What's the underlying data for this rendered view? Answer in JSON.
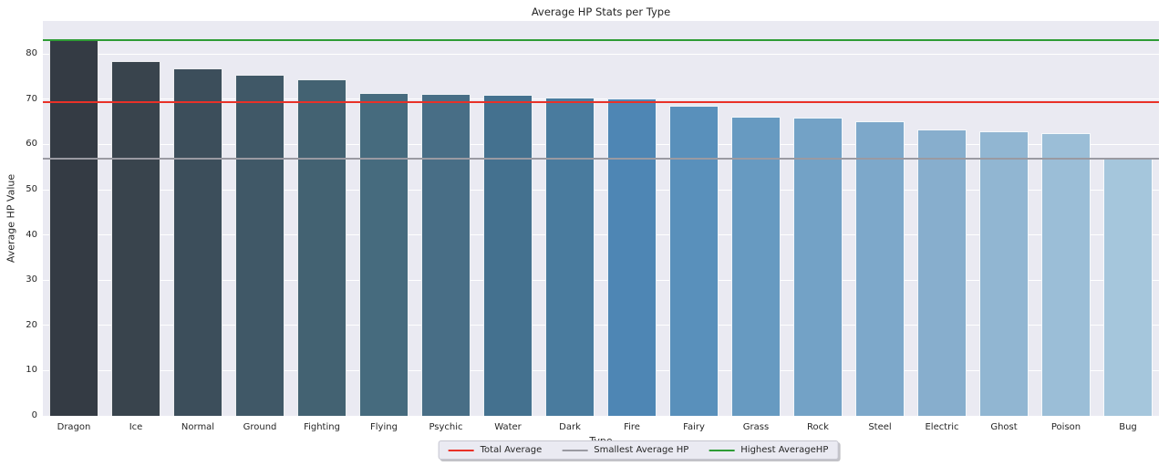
{
  "title": "Average HP Stats per Type",
  "colors": {
    "page_bg": "#ffffff",
    "plot_bg": "#eaeaf2",
    "grid": "#ffffff",
    "text": "#262626",
    "legend_bg": "#eaeaf2",
    "legend_border": "#c6c6d0",
    "total_average_line": "#e93128",
    "smallest_average_line": "#9a9aa2",
    "highest_average_line": "#2e9c35"
  },
  "chart_data": {
    "type": "bar",
    "title": "Average HP Stats per Type",
    "xlabel": "Type",
    "ylabel": "Average HP Value",
    "categories": [
      "Dragon",
      "Ice",
      "Normal",
      "Ground",
      "Fighting",
      "Flying",
      "Psychic",
      "Water",
      "Dark",
      "Fire",
      "Fairy",
      "Grass",
      "Rock",
      "Steel",
      "Electric",
      "Ghost",
      "Poison",
      "Bug"
    ],
    "values": [
      83.1,
      78.5,
      76.8,
      75.5,
      74.5,
      71.4,
      71.2,
      71.0,
      70.3,
      70.1,
      68.5,
      66.1,
      66.0,
      65.2,
      63.3,
      62.9,
      62.6,
      56.9
    ],
    "bar_colors": [
      "#343b44",
      "#39444d",
      "#3c4e5b",
      "#405867",
      "#436272",
      "#466b7e",
      "#486e86",
      "#44718f",
      "#497b9e",
      "#4e86b4",
      "#5990bb",
      "#679ac1",
      "#73a2c6",
      "#7da8ca",
      "#87aecd",
      "#91b6d2",
      "#9bbed7",
      "#a5c6dc"
    ],
    "ylim": [
      0,
      87.3
    ],
    "yticks": [
      0,
      10,
      20,
      30,
      40,
      50,
      60,
      70,
      80
    ],
    "grid": true,
    "legend_position": "bottom-center",
    "reference_lines": [
      {
        "label": "Total Average",
        "value": 69.3,
        "color": "#e93128"
      },
      {
        "label": "Smallest Average HP",
        "value": 56.9,
        "color": "#9a9aa2"
      },
      {
        "label": "Highest AverageHP",
        "value": 83.1,
        "color": "#2e9c35"
      }
    ]
  }
}
